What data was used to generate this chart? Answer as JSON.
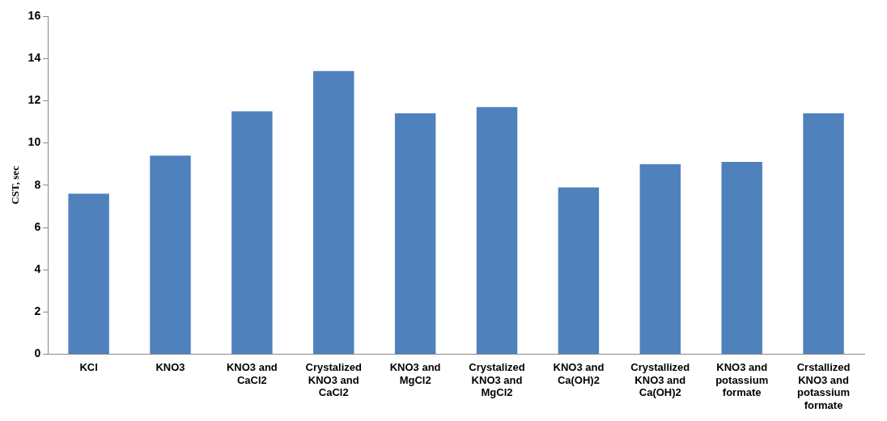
{
  "chart_data": {
    "type": "bar",
    "ylabel": "CST, sec",
    "categories": [
      "KCl",
      "KNO3",
      "KNO3 and CaCl2",
      "Crystalized KNO3 and CaCl2",
      "KNO3 and MgCl2",
      "Crystalized KNO3 and MgCl2",
      "KNO3 and Ca(OH)2",
      "Crystallized KNO3 and Ca(OH)2",
      "KNO3 and potassium formate",
      "Crstallized KNO3 and potassium formate"
    ],
    "values": [
      7.6,
      9.4,
      11.5,
      13.4,
      11.4,
      11.7,
      7.9,
      9.0,
      9.1,
      11.4
    ],
    "color": "#4f81bd",
    "ylim": [
      0,
      16
    ],
    "yticks": [
      0,
      2,
      4,
      6,
      8,
      10,
      12,
      14,
      16
    ],
    "grid": false,
    "legend": false
  }
}
